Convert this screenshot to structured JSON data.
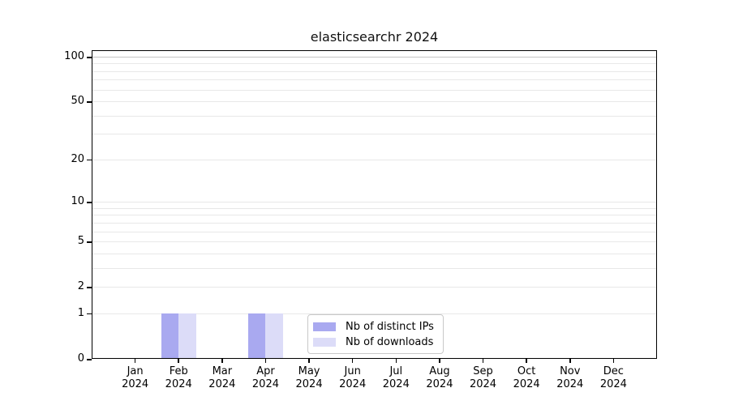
{
  "chart_data": {
    "type": "bar",
    "title": "elasticsearchr 2024",
    "categories": [
      "Jan 2024",
      "Feb 2024",
      "Mar 2024",
      "Apr 2024",
      "May 2024",
      "Jun 2024",
      "Jul 2024",
      "Aug 2024",
      "Sep 2024",
      "Oct 2024",
      "Nov 2024",
      "Dec 2024"
    ],
    "series": [
      {
        "name": "Nb of distinct IPs",
        "color": "#a9a9f0",
        "values": [
          0,
          1,
          0,
          1,
          0,
          0,
          0,
          0,
          0,
          0,
          0,
          0
        ]
      },
      {
        "name": "Nb of downloads",
        "color": "#dcdcf8",
        "values": [
          0,
          1,
          0,
          1,
          0,
          0,
          0,
          0,
          0,
          0,
          0,
          0
        ]
      }
    ],
    "xlabel": "",
    "ylabel": "",
    "yscale": "log1p",
    "ylim": [
      0,
      110
    ],
    "y_major_ticks": [
      0,
      1,
      2,
      5,
      10,
      20,
      50,
      100
    ],
    "y_minor_gridlines": [
      3,
      4,
      6,
      7,
      8,
      9,
      30,
      40,
      60,
      70,
      80,
      90
    ],
    "grid": "on",
    "legend_position": "inside-bottom-center"
  },
  "colors": {
    "distinct_ips": "#a9a9f0",
    "downloads": "#dcdcf8",
    "gridline_minor": "#e8e8e8",
    "gridline_top": "#c4c4c4",
    "spine": "#000000",
    "legend_border": "#c9c9c9"
  }
}
